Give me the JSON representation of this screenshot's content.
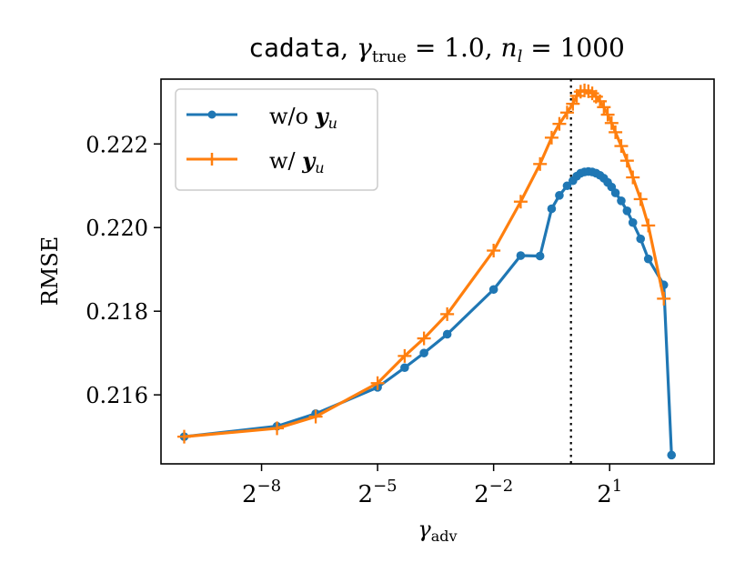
{
  "chart_data": {
    "type": "line",
    "title": {
      "dataset": "cadata",
      "sep1": ", ",
      "gamma_sym": "γ",
      "gamma_sub": "true",
      "gamma_val": " = 1.0",
      "sep2": ", ",
      "n_sym": "n",
      "n_sub": "l",
      "n_val": " = 1000"
    },
    "xlabel": {
      "sym": "γ",
      "sub": "adv"
    },
    "ylabel": "RMSE",
    "xscale": "log2",
    "xlim_log2": [
      -10.6,
      3.7
    ],
    "ylim": [
      0.21435,
      0.22355
    ],
    "xticks": [
      {
        "exp": -8,
        "base": "2",
        "sup": "−8"
      },
      {
        "exp": -5,
        "base": "2",
        "sup": "−5"
      },
      {
        "exp": -2,
        "base": "2",
        "sup": "−2"
      },
      {
        "exp": 1,
        "base": "2",
        "sup": "1"
      }
    ],
    "yticks": [
      {
        "value": 0.216,
        "label": "0.216"
      },
      {
        "value": 0.218,
        "label": "0.218"
      },
      {
        "value": 0.22,
        "label": "0.220"
      },
      {
        "value": 0.222,
        "label": "0.222"
      }
    ],
    "vline": {
      "x_log2": 0.0,
      "style": "dotted"
    },
    "series": [
      {
        "name_prefix": "w/o ",
        "name_vec": "y",
        "name_sub": "u",
        "color": "#1f77b4",
        "marker": "circle",
        "x_log2": [
          -10.0,
          -7.6,
          -6.6,
          -5.0,
          -4.3,
          -3.8,
          -3.2,
          -2.0,
          -1.3,
          -0.8,
          -0.5,
          -0.3,
          -0.1,
          0.05,
          0.15,
          0.25,
          0.35,
          0.45,
          0.55,
          0.65,
          0.75,
          0.85,
          0.95,
          1.05,
          1.15,
          1.3,
          1.45,
          1.6,
          1.8,
          2.0,
          2.4,
          2.6
        ],
        "y": [
          0.215,
          0.21525,
          0.21555,
          0.21618,
          0.21665,
          0.217,
          0.21745,
          0.21852,
          0.21933,
          0.21932,
          0.22045,
          0.22077,
          0.221,
          0.22112,
          0.22123,
          0.2213,
          0.22133,
          0.22134,
          0.22133,
          0.2213,
          0.22125,
          0.22118,
          0.22108,
          0.22097,
          0.22083,
          0.22064,
          0.2204,
          0.22012,
          0.21973,
          0.21925,
          0.21863,
          0.21456
        ]
      },
      {
        "name_prefix": "w/ ",
        "name_vec": "y",
        "name_sub": "u",
        "color": "#ff7f0e",
        "marker": "plus",
        "x_log2": [
          -10.0,
          -7.6,
          -6.6,
          -5.0,
          -4.3,
          -3.8,
          -3.2,
          -2.0,
          -1.3,
          -0.8,
          -0.5,
          -0.3,
          -0.1,
          0.05,
          0.15,
          0.25,
          0.35,
          0.45,
          0.55,
          0.65,
          0.75,
          0.85,
          0.95,
          1.05,
          1.15,
          1.3,
          1.45,
          1.6,
          1.8,
          2.0,
          2.4
        ],
        "y": [
          0.215,
          0.2152,
          0.21548,
          0.21628,
          0.21693,
          0.21735,
          0.21793,
          0.21945,
          0.22062,
          0.22152,
          0.22215,
          0.22248,
          0.22275,
          0.22296,
          0.22315,
          0.22325,
          0.22328,
          0.22326,
          0.22321,
          0.22313,
          0.22302,
          0.22288,
          0.2227,
          0.2225,
          0.22228,
          0.22195,
          0.2216,
          0.2212,
          0.22068,
          0.22005,
          0.2183
        ]
      }
    ]
  }
}
